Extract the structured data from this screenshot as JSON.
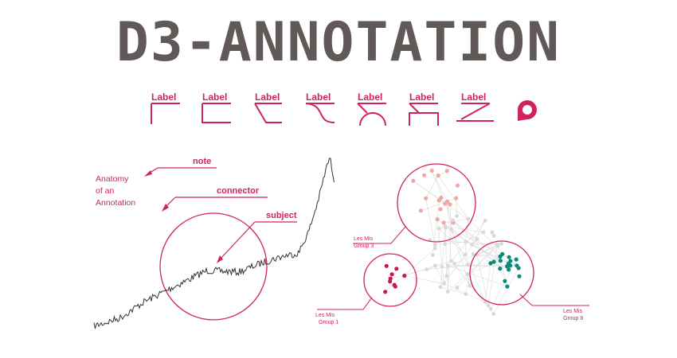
{
  "header": {
    "title": "D3-ANNOTATION"
  },
  "annotation_types": {
    "label": "Label",
    "count": 7,
    "badge_icon": "badge-icon"
  },
  "anatomy": {
    "heading": [
      "Anatomy",
      "of an",
      "Annotation"
    ],
    "note_label": "note",
    "connector_label": "connector",
    "subject_label": "subject"
  },
  "network": {
    "groups": [
      {
        "line1": "Les Mis",
        "line2": "Group 3"
      },
      {
        "line1": "Les Mis",
        "line2": "Group 1"
      },
      {
        "line1": "Les Mis",
        "line2": "Group 8"
      }
    ]
  },
  "colors": {
    "accent": "#d0235e",
    "title": "#615957",
    "group3": "#f0a7a0",
    "group1": "#c8175e",
    "group8": "#0f8a7a",
    "node_gray": "#d8d8d8"
  }
}
